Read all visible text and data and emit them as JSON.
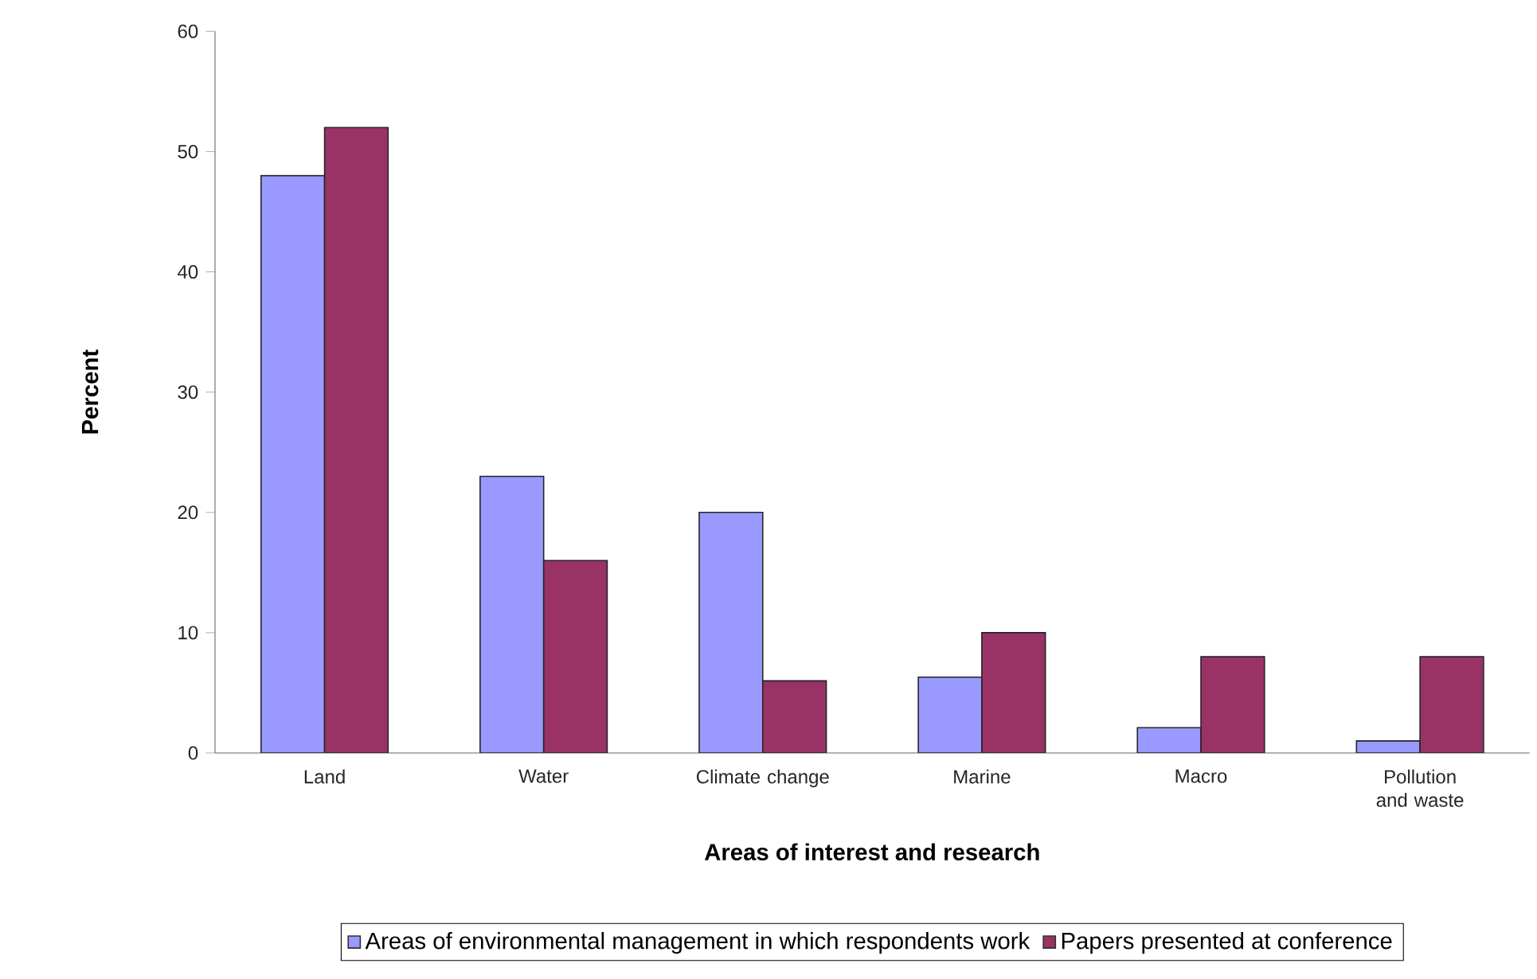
{
  "chart_data": {
    "type": "bar",
    "xlabel": "Areas of interest and research",
    "ylabel": "Percent",
    "categories": [
      "Land",
      "Water",
      "Climate change",
      "Marine",
      "Macro",
      "Pollution and waste"
    ],
    "series": [
      {
        "name": "Areas of environmental management in which respondents work",
        "color": "#9999ff",
        "values": [
          48,
          23,
          20,
          6.3,
          2.1,
          1.0
        ]
      },
      {
        "name": "Papers presented at conference",
        "color": "#993366",
        "values": [
          52,
          16,
          6,
          10,
          8,
          8
        ]
      }
    ],
    "ylim": [
      0,
      60
    ],
    "yticks": [
      0,
      10,
      20,
      30,
      40,
      50,
      60
    ],
    "legend": "bottom"
  }
}
